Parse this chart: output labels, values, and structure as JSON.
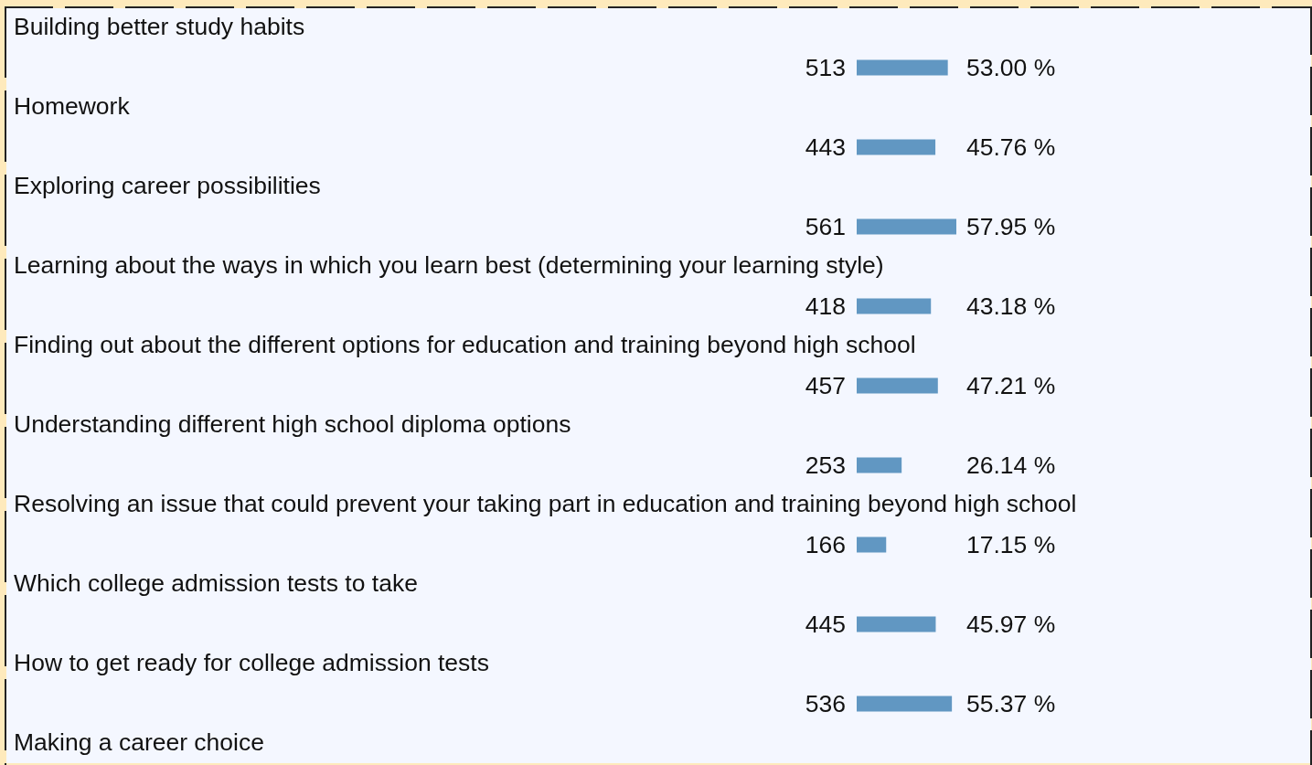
{
  "chart_data": {
    "type": "bar",
    "orientation": "horizontal",
    "categories": [
      "Building better study habits",
      "Homework",
      "Exploring career possibilities",
      "Learning about the ways in which you learn best (determining your learning style)",
      "Finding out about the different options for education and training beyond high school",
      "Understanding different high school diploma options",
      "Resolving an issue that could prevent your taking part in education and training beyond high school",
      "Which college admission tests to take",
      "How to get ready for college admission tests",
      "Making a career choice"
    ],
    "values": [
      513,
      443,
      561,
      418,
      457,
      253,
      166,
      445,
      536,
      null
    ],
    "color": "#6197c2",
    "data_labels": true,
    "annotations": [
      "53.00 %",
      "45.76 %",
      "57.95 %",
      "43.18 %",
      "47.21 %",
      "26.14 %",
      "17.15 %",
      "45.97 %",
      "55.37 %"
    ]
  }
}
